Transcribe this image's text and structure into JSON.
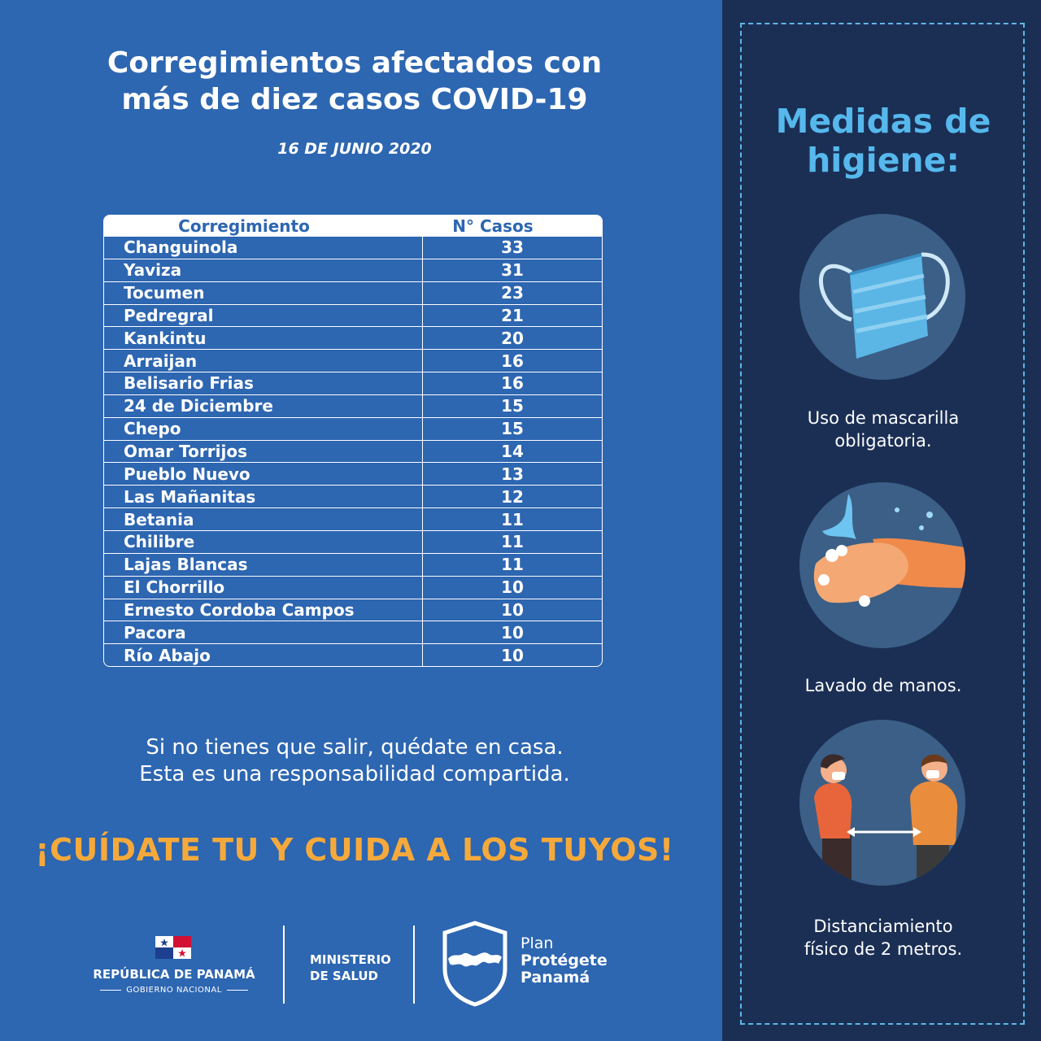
{
  "title_line1": "Corregimientos afectados con",
  "title_line2": "más de diez casos COVID-19",
  "date": "16 DE JUNIO 2020",
  "table": {
    "headers": [
      "Corregimiento",
      "N° Casos"
    ],
    "rows": [
      {
        "name": "Changuinola",
        "cases": "33"
      },
      {
        "name": "Yaviza",
        "cases": "31"
      },
      {
        "name": "Tocumen",
        "cases": "23"
      },
      {
        "name": "Pedregral",
        "cases": "21"
      },
      {
        "name": "Kankintu",
        "cases": "20"
      },
      {
        "name": "Arraijan",
        "cases": "16"
      },
      {
        "name": "Belisario Frias",
        "cases": "16"
      },
      {
        "name": "24 de Diciembre",
        "cases": "15"
      },
      {
        "name": "Chepo",
        "cases": "15"
      },
      {
        "name": "Omar Torrijos",
        "cases": "14"
      },
      {
        "name": "Pueblo Nuevo",
        "cases": "13"
      },
      {
        "name": "Las Mañanitas",
        "cases": "12"
      },
      {
        "name": "Betania",
        "cases": "11"
      },
      {
        "name": "Chilibre",
        "cases": "11"
      },
      {
        "name": "Lajas Blancas",
        "cases": "11"
      },
      {
        "name": "El Chorrillo",
        "cases": "10"
      },
      {
        "name": "Ernesto Cordoba Campos",
        "cases": "10"
      },
      {
        "name": "Pacora",
        "cases": "10"
      },
      {
        "name": "Río Abajo",
        "cases": "10"
      }
    ]
  },
  "message_line1": "Si no tienes que salir, quédate en casa.",
  "message_line2": "Esta es una responsabilidad compartida.",
  "slogan": "¡CUÍDATE TU Y CUIDA A LOS TUYOS!",
  "footer": {
    "republic": "REPÚBLICA DE PANAMÁ",
    "government": "GOBIERNO NACIONAL",
    "ministry_line1": "MINISTERIO",
    "ministry_line2": "DE SALUD",
    "plan_line1": "Plan",
    "plan_line2": "Protégete",
    "plan_line3": "Panamá"
  },
  "panel": {
    "heading_line1": "Medidas de",
    "heading_line2": "higiene:",
    "items": [
      {
        "icon": "face-mask-icon",
        "caption_line1": "Uso de mascarilla",
        "caption_line2": "obligatoria."
      },
      {
        "icon": "hand-washing-icon",
        "caption_line1": "Lavado de manos.",
        "caption_line2": ""
      },
      {
        "icon": "social-distancing-icon",
        "caption_line1": "Distanciamiento",
        "caption_line2": "físico de 2 metros."
      }
    ]
  },
  "colors": {
    "background": "#2d66b1",
    "panel": "#1b2f55",
    "heading_accent": "#56b8ec",
    "slogan": "#f6a93b"
  }
}
